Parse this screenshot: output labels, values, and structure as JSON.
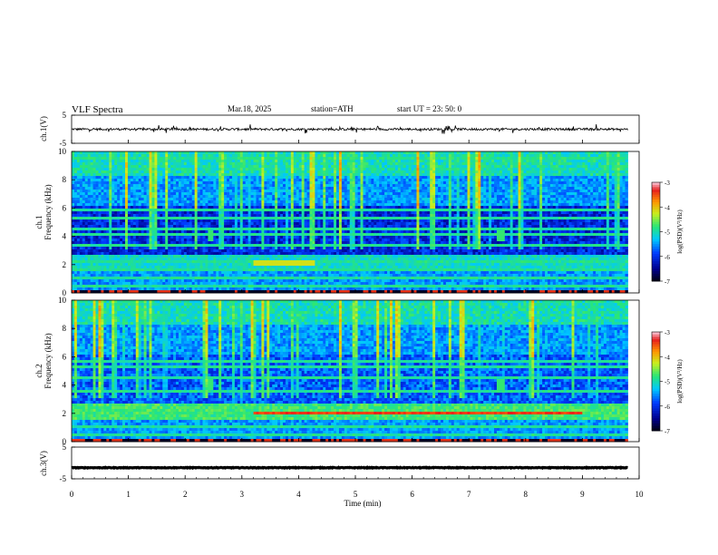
{
  "header": {
    "title": "VLF  Spectra",
    "date": "Mar.18, 2025",
    "station": "station=ATH",
    "start": "start  UT  =    23: 50: 0"
  },
  "chart_data": [
    {
      "id": "ch1-waveform",
      "type": "line",
      "ylabel": "ch.1(V)",
      "ylim": [
        -5,
        5
      ],
      "yticks": [
        "5",
        "-5"
      ],
      "xlim": [
        0,
        10
      ],
      "baseline": 0,
      "noise_amplitude": 0.4,
      "spikes": "frequent short spikes up to about ±1.5 V"
    },
    {
      "id": "ch1-spectrogram",
      "type": "heatmap",
      "ylabel": "ch.1",
      "ylabel2": "Frequency  (kHz)",
      "ylim": [
        0,
        10
      ],
      "yticks": [
        "0",
        "2",
        "4",
        "6",
        "8",
        "10"
      ],
      "xlim": [
        0,
        10
      ],
      "colorbar": {
        "label": "log(PSD)(V²/Hz)",
        "ticks": [
          "-3",
          "-4",
          "-5",
          "-6",
          "-7"
        ],
        "range": [
          -7,
          -3
        ]
      },
      "bands_khz": [
        0.4,
        1.0,
        1.6,
        2.2,
        3.4,
        4.1,
        4.6,
        5.2,
        5.8,
        9.6
      ],
      "features": "broadband sferics throughout; green band 2.0–2.4 kHz; dark low-noise region 3–5 kHz; bright narrowband burst near 4 kHz at t≈2.45 and 7.55 min"
    },
    {
      "id": "ch2-spectrogram",
      "type": "heatmap",
      "ylabel": "ch.2",
      "ylabel2": "Frequency  (kHz)",
      "ylim": [
        0,
        10
      ],
      "yticks": [
        "0",
        "2",
        "4",
        "6",
        "8",
        "10"
      ],
      "xlim": [
        0,
        10
      ],
      "colorbar": {
        "label": "log(PSD)(V²/Hz)",
        "ticks": [
          "-3",
          "-4",
          "-5",
          "-6",
          "-7"
        ],
        "range": [
          -7,
          -3
        ]
      },
      "bands_khz": [
        0.4,
        1.0,
        1.6,
        2.0,
        2.2,
        3.5,
        4.5,
        5.2,
        5.7
      ],
      "features": "stronger emission than ch.1; orange/red band near 2 kHz between t≈3.2 and 9 min; green burst near 4 kHz at t≈2.45 and 7.55 min"
    },
    {
      "id": "ch3-waveform",
      "type": "line",
      "ylabel": "ch.3(V)",
      "ylim": [
        -5,
        5
      ],
      "yticks": [
        "5",
        "-5"
      ],
      "xlim": [
        0,
        10
      ],
      "baseline": -1.5,
      "noise_amplitude": 0.1
    }
  ],
  "xaxis": {
    "label": "Time  (min)",
    "ticks": [
      "0",
      "1",
      "2",
      "3",
      "4",
      "5",
      "6",
      "7",
      "8",
      "9",
      "10"
    ],
    "data_end": 9.8
  }
}
